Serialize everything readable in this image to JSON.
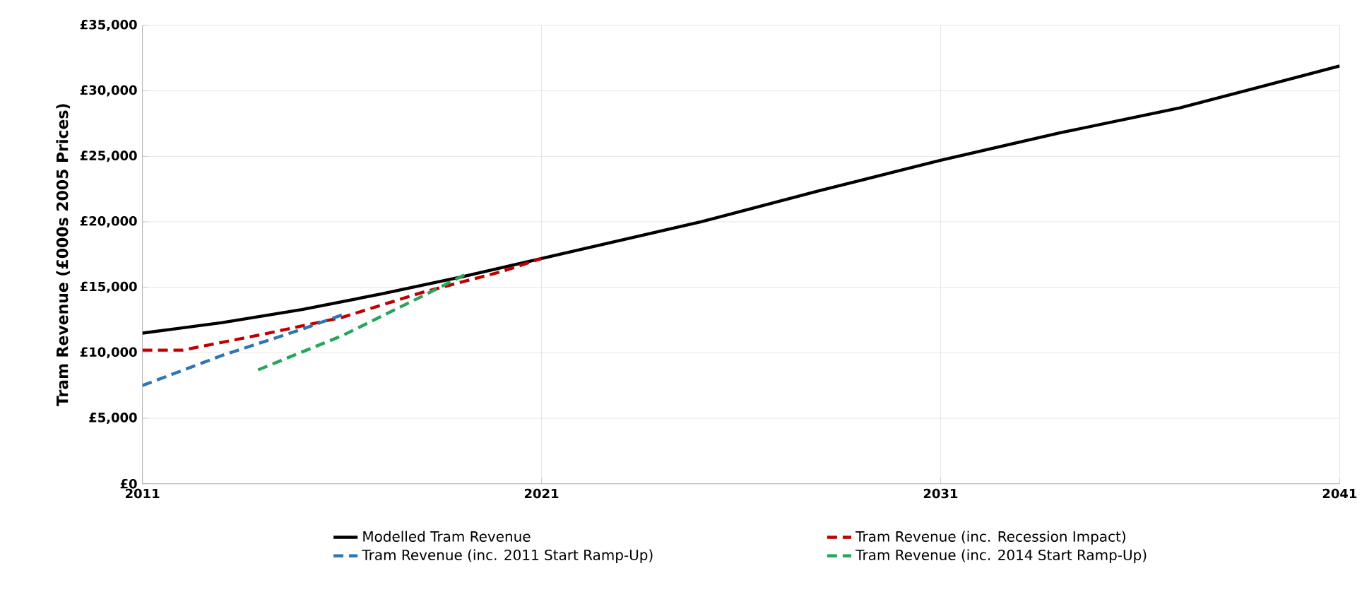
{
  "chart_data": {
    "type": "line",
    "ylabel": "Tram Revenue (£000s 2005 Prices)",
    "xlim": [
      2011,
      2041
    ],
    "xticks": [
      2011,
      2021,
      2031,
      2041
    ],
    "ylim": [
      0,
      35000
    ],
    "yticks": [
      {
        "value": 0,
        "label": "£0"
      },
      {
        "value": 5000,
        "label": "£5,000"
      },
      {
        "value": 10000,
        "label": "£10,000"
      },
      {
        "value": 15000,
        "label": "£15,000"
      },
      {
        "value": 20000,
        "label": "£20,000"
      },
      {
        "value": 25000,
        "label": "£25,000"
      },
      {
        "value": 30000,
        "label": "£30,000"
      },
      {
        "value": 35000,
        "label": "£35,000"
      }
    ],
    "grid": true,
    "legend": "bottom",
    "marker": "none",
    "series": [
      {
        "name": "Modelled Tram Revenue",
        "color": "#000000",
        "line_style": "solid",
        "x": [
          2011,
          2013,
          2015,
          2017,
          2019,
          2021,
          2025,
          2028,
          2031,
          2034,
          2037,
          2041
        ],
        "values": [
          11500,
          12300,
          13300,
          14500,
          15800,
          17200,
          20000,
          22400,
          24700,
          26800,
          28700,
          31900
        ]
      },
      {
        "name": "Tram Revenue (inc. Recession Impact)",
        "color": "#c00000",
        "line_style": "dashed",
        "x": [
          2011,
          2012,
          2014,
          2016,
          2018,
          2020,
          2021
        ],
        "values": [
          10200,
          10200,
          11400,
          12700,
          14600,
          16200,
          17200
        ]
      },
      {
        "name": "Tram Revenue (inc. 2011 Start Ramp-Up)",
        "color": "#2e75b6",
        "line_style": "dashed",
        "x": [
          2011,
          2013,
          2015,
          2016.1
        ],
        "values": [
          7500,
          9800,
          11800,
          13000
        ]
      },
      {
        "name": "Tram Revenue (inc. 2014 Start Ramp-Up)",
        "color": "#27a55a",
        "line_style": "dashed",
        "x": [
          2013.9,
          2016,
          2018,
          2019.1
        ],
        "values": [
          8700,
          11300,
          14300,
          16000
        ]
      }
    ]
  }
}
